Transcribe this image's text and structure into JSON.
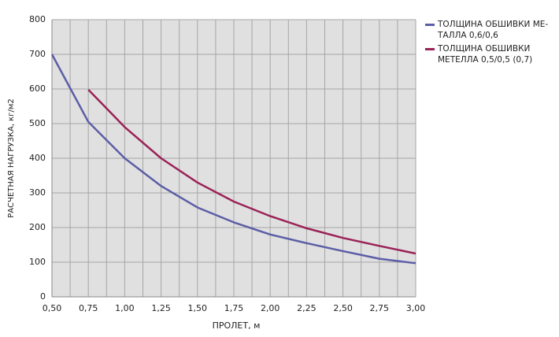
{
  "chart_data": {
    "type": "line",
    "xlabel": "ПРОЛЕТ, м",
    "ylabel": "РАСЧЕТНАЯ НАГРУЗКА, кг/м2",
    "x": [
      0.5,
      0.75,
      1.0,
      1.25,
      1.5,
      1.75,
      2.0,
      2.25,
      2.5,
      2.75,
      3.0
    ],
    "series": [
      {
        "name": "ТОЛЩИНА ОБШИВКИ МЕ-\nТАЛЛА 0,6/0,6",
        "color": "#5b5ea6",
        "values": [
          700,
          505,
          400,
          320,
          258,
          215,
          180,
          155,
          132,
          110,
          97
        ]
      },
      {
        "name": "ТОЛЩИНА ОБШИВКИ\nМЕТЕЛЛА 0,5/0,5 (0,7)",
        "color": "#9b2257",
        "values": [
          null,
          598,
          490,
          400,
          330,
          275,
          233,
          198,
          170,
          147,
          125
        ]
      }
    ],
    "xlim": [
      0.5,
      3.0
    ],
    "xticks": [
      {
        "value": 0.5,
        "label": "0,50"
      },
      {
        "value": 0.75,
        "label": "0,75"
      },
      {
        "value": 1.0,
        "label": "1,00"
      },
      {
        "value": 1.25,
        "label": "1,25"
      },
      {
        "value": 1.5,
        "label": "1,50"
      },
      {
        "value": 1.75,
        "label": "1,75"
      },
      {
        "value": 2.0,
        "label": "2,00"
      },
      {
        "value": 2.25,
        "label": "2,25"
      },
      {
        "value": 2.5,
        "label": "2,50"
      },
      {
        "value": 2.75,
        "label": "2,75"
      },
      {
        "value": 3.0,
        "label": "3,00"
      }
    ],
    "xminorticks": [
      0.625,
      0.875,
      1.125,
      1.375,
      1.625,
      1.875,
      2.125,
      2.375,
      2.625,
      2.875
    ],
    "ylim": [
      0,
      800
    ],
    "yticks": [
      0,
      100,
      200,
      300,
      400,
      500,
      600,
      700,
      800
    ],
    "grid": true,
    "legend": "right"
  }
}
